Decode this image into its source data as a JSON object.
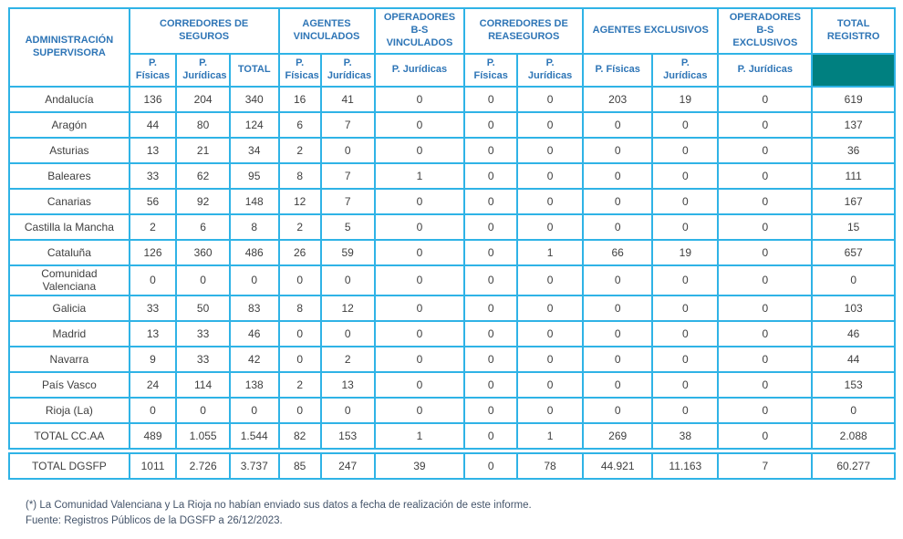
{
  "colors": {
    "border": "#2fb3e6",
    "header_text": "#2e75b6",
    "body_text": "#3f3f3f",
    "total_registro_fill": "#008080",
    "footnote_text": "#44546a"
  },
  "table": {
    "corner_header": "ADMINISTRACIÓN SUPERVISORA",
    "groups": [
      "CORREDORES DE SEGUROS",
      "AGENTES VINCULADOS",
      "OPERADORES B-S VINCULADOS",
      "CORREDORES DE REASEGUROS",
      "AGENTES EXCLUSIVOS",
      "OPERADORES B-S EXCLUSIVOS",
      "TOTAL REGISTRO"
    ],
    "subheaders": [
      "P. Físicas",
      "P. Jurídicas",
      "TOTAL",
      "P. Físicas",
      "P. Jurídicas",
      "P. Jurídicas",
      "P. Físicas",
      "P. Jurídicas",
      "P. Físicas",
      "P. Jurídicas",
      "P. Jurídicas"
    ],
    "rows": [
      {
        "name": "row-andalucia",
        "region": "Andalucía",
        "values": [
          "136",
          "204",
          "340",
          "16",
          "41",
          "0",
          "0",
          "0",
          "203",
          "19",
          "0",
          "619"
        ]
      },
      {
        "name": "row-aragon",
        "region": "Aragón",
        "values": [
          "44",
          "80",
          "124",
          "6",
          "7",
          "0",
          "0",
          "0",
          "0",
          "0",
          "0",
          "137"
        ]
      },
      {
        "name": "row-asturias",
        "region": "Asturias",
        "values": [
          "13",
          "21",
          "34",
          "2",
          "0",
          "0",
          "0",
          "0",
          "0",
          "0",
          "0",
          "36"
        ]
      },
      {
        "name": "row-baleares",
        "region": "Baleares",
        "values": [
          "33",
          "62",
          "95",
          "8",
          "7",
          "1",
          "0",
          "0",
          "0",
          "0",
          "0",
          "111"
        ]
      },
      {
        "name": "row-canarias",
        "region": "Canarias",
        "values": [
          "56",
          "92",
          "148",
          "12",
          "7",
          "0",
          "0",
          "0",
          "0",
          "0",
          "0",
          "167"
        ]
      },
      {
        "name": "row-castilla-la-mancha",
        "region": "Castilla la Mancha",
        "values": [
          "2",
          "6",
          "8",
          "2",
          "5",
          "0",
          "0",
          "0",
          "0",
          "0",
          "0",
          "15"
        ]
      },
      {
        "name": "row-cataluna",
        "region": "Cataluña",
        "values": [
          "126",
          "360",
          "486",
          "26",
          "59",
          "0",
          "0",
          "1",
          "66",
          "19",
          "0",
          "657"
        ]
      },
      {
        "name": "row-comunidad-valenciana",
        "region": "Comunidad Valenciana",
        "values": [
          "0",
          "0",
          "0",
          "0",
          "0",
          "0",
          "0",
          "0",
          "0",
          "0",
          "0",
          "0"
        ]
      },
      {
        "name": "row-galicia",
        "region": "Galicia",
        "values": [
          "33",
          "50",
          "83",
          "8",
          "12",
          "0",
          "0",
          "0",
          "0",
          "0",
          "0",
          "103"
        ]
      },
      {
        "name": "row-madrid",
        "region": "Madrid",
        "values": [
          "13",
          "33",
          "46",
          "0",
          "0",
          "0",
          "0",
          "0",
          "0",
          "0",
          "0",
          "46"
        ]
      },
      {
        "name": "row-navarra",
        "region": "Navarra",
        "values": [
          "9",
          "33",
          "42",
          "0",
          "2",
          "0",
          "0",
          "0",
          "0",
          "0",
          "0",
          "44"
        ]
      },
      {
        "name": "row-pais-vasco",
        "region": "País Vasco",
        "values": [
          "24",
          "114",
          "138",
          "2",
          "13",
          "0",
          "0",
          "0",
          "0",
          "0",
          "0",
          "153"
        ]
      },
      {
        "name": "row-rioja-la",
        "region": "Rioja (La)",
        "values": [
          "0",
          "0",
          "0",
          "0",
          "0",
          "0",
          "0",
          "0",
          "0",
          "0",
          "0",
          "0"
        ]
      },
      {
        "name": "row-total-ccaa",
        "region": "TOTAL CC.AA",
        "values": [
          "489",
          "1.055",
          "1.544",
          "82",
          "153",
          "1",
          "0",
          "1",
          "269",
          "38",
          "0",
          "2.088"
        ]
      }
    ],
    "dgsfp_row": {
      "name": "row-total-dgsfp",
      "region": "TOTAL DGSFP",
      "values": [
        "1011",
        "2.726",
        "3.737",
        "85",
        "247",
        "39",
        "0",
        "78",
        "44.921",
        "11.163",
        "7",
        "60.277"
      ]
    }
  },
  "footnotes": [
    "(*) La Comunidad Valenciana y La Rioja no habían enviado sus datos a fecha de realización de este informe.",
    "Fuente: Registros Públicos de la DGSFP a 26/12/2023."
  ]
}
